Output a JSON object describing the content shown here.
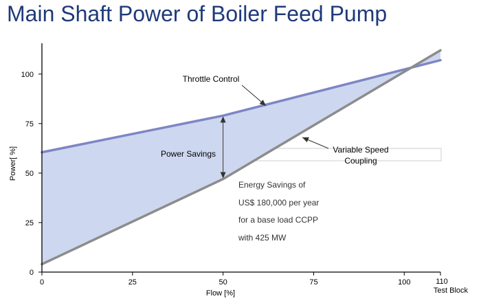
{
  "title": "Main Shaft Power of Boiler Feed Pump",
  "colors": {
    "title": "#1f3a7a",
    "fill": "#cdd7ef",
    "throttle_line": "#7d86c4",
    "variable_line": "#8c8c8c",
    "axis": "#000000"
  },
  "chart_data": {
    "type": "area",
    "xlabel": "Flow [%]",
    "ylabel": "Power[ %]",
    "xlim": [
      0,
      110
    ],
    "ylim": [
      0,
      115
    ],
    "x_ticks": [
      "0",
      "25",
      "50",
      "75",
      "100",
      "110"
    ],
    "y_ticks": [
      "0",
      "25",
      "50",
      "75",
      "100"
    ],
    "x_end_label": "Test Block",
    "series": [
      {
        "name": "Throttle Control",
        "x": [
          0,
          50,
          110
        ],
        "y": [
          60.5,
          79,
          107
        ]
      },
      {
        "name": "Variable Speed Coupling",
        "x": [
          0,
          50,
          110
        ],
        "y": [
          4,
          47,
          112
        ]
      }
    ],
    "annotations": {
      "throttle": "Throttle Control",
      "variable_line1": "Variable Speed",
      "variable_line2": "Coupling",
      "power_savings": "Power Savings",
      "energy": [
        "Energy Savings of",
        "US$ 180,000 per year",
        "for a base load CCPP",
        "with 425 MW"
      ]
    }
  }
}
